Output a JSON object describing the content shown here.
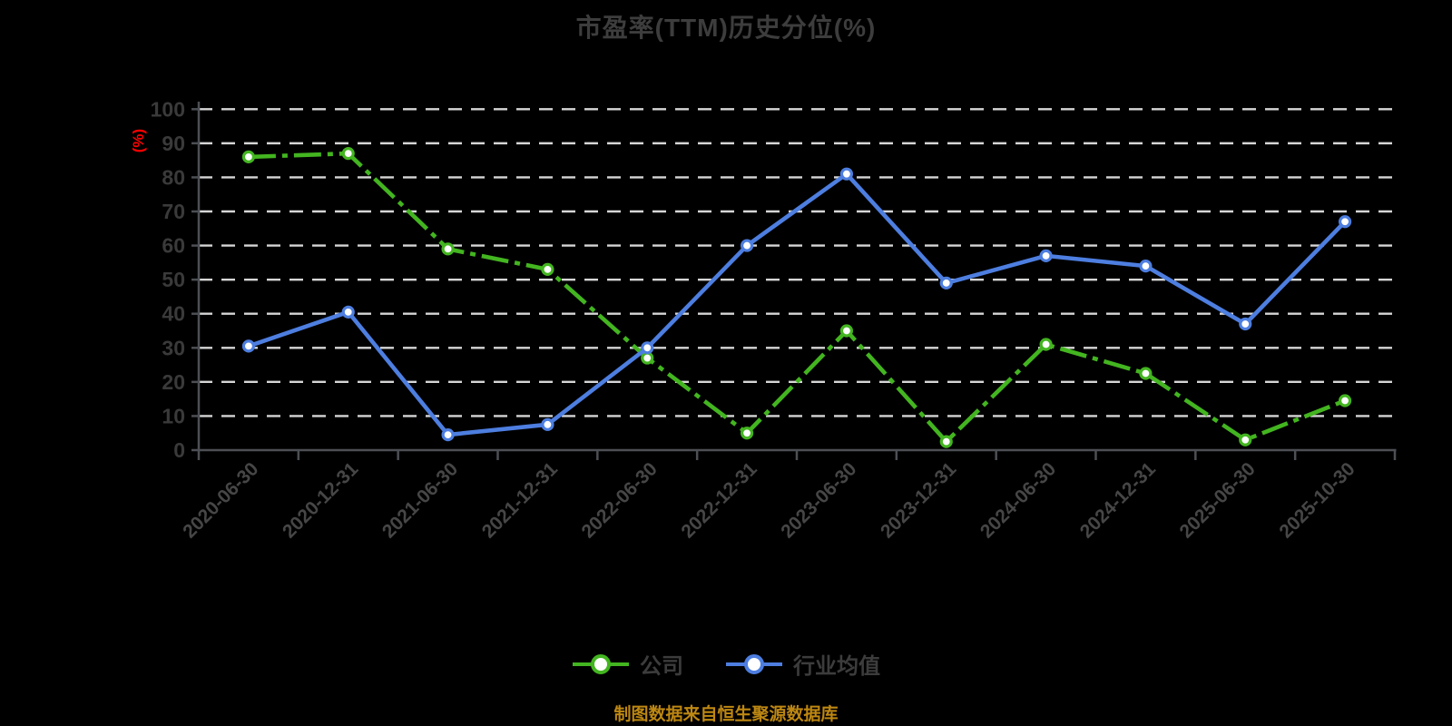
{
  "title": "市盈率(TTM)历史分位(%)",
  "y_axis": {
    "unit_label": "(%)",
    "unit_color": "#ff0000"
  },
  "footer": {
    "text": "制图数据来自恒生聚源数据库",
    "color": "#bd8712"
  },
  "legend": {
    "items": [
      {
        "label": "公司",
        "color": "#43b520"
      },
      {
        "label": "行业均值",
        "color": "#4d7ee0"
      }
    ]
  },
  "colors": {
    "background": "#000000",
    "title_text": "#3d3d3d",
    "axis_spine": "#4c4f54",
    "tick_label": "#3a3a3a",
    "x_tick_label": "#464646",
    "grid_line": "#d6d6d6",
    "company_series": "#43b520",
    "industry_series": "#4d7ee0",
    "marker_fill": "#ffffff"
  },
  "chart_data": {
    "type": "line",
    "title": "市盈率(TTM)历史分位(%)",
    "xlabel": "",
    "ylabel": "(%)",
    "ylim": [
      0,
      100
    ],
    "yticks": [
      0,
      10,
      20,
      30,
      40,
      50,
      60,
      70,
      80,
      90,
      100
    ],
    "grid": "horizontal dashed",
    "legend_position": "bottom",
    "categories": [
      "2020-06-30",
      "2020-12-31",
      "2021-06-30",
      "2021-12-31",
      "2022-06-30",
      "2022-12-31",
      "2023-06-30",
      "2023-12-31",
      "2024-06-30",
      "2024-12-31",
      "2025-06-30",
      "2025-10-30"
    ],
    "series": [
      {
        "name": "公司",
        "key": "company",
        "color": "#43b520",
        "line_style": "dashdot",
        "marker": "circle-white-fill",
        "values": [
          86,
          87,
          59,
          53,
          27,
          5,
          35,
          2.5,
          31,
          22.5,
          3,
          14.5
        ]
      },
      {
        "name": "行业均值",
        "key": "industry-average",
        "color": "#4d7ee0",
        "line_style": "solid",
        "marker": "circle-white-fill",
        "values": [
          30.5,
          40.5,
          4.5,
          7.5,
          30,
          60,
          81,
          49,
          57,
          54,
          37,
          67
        ]
      }
    ]
  }
}
